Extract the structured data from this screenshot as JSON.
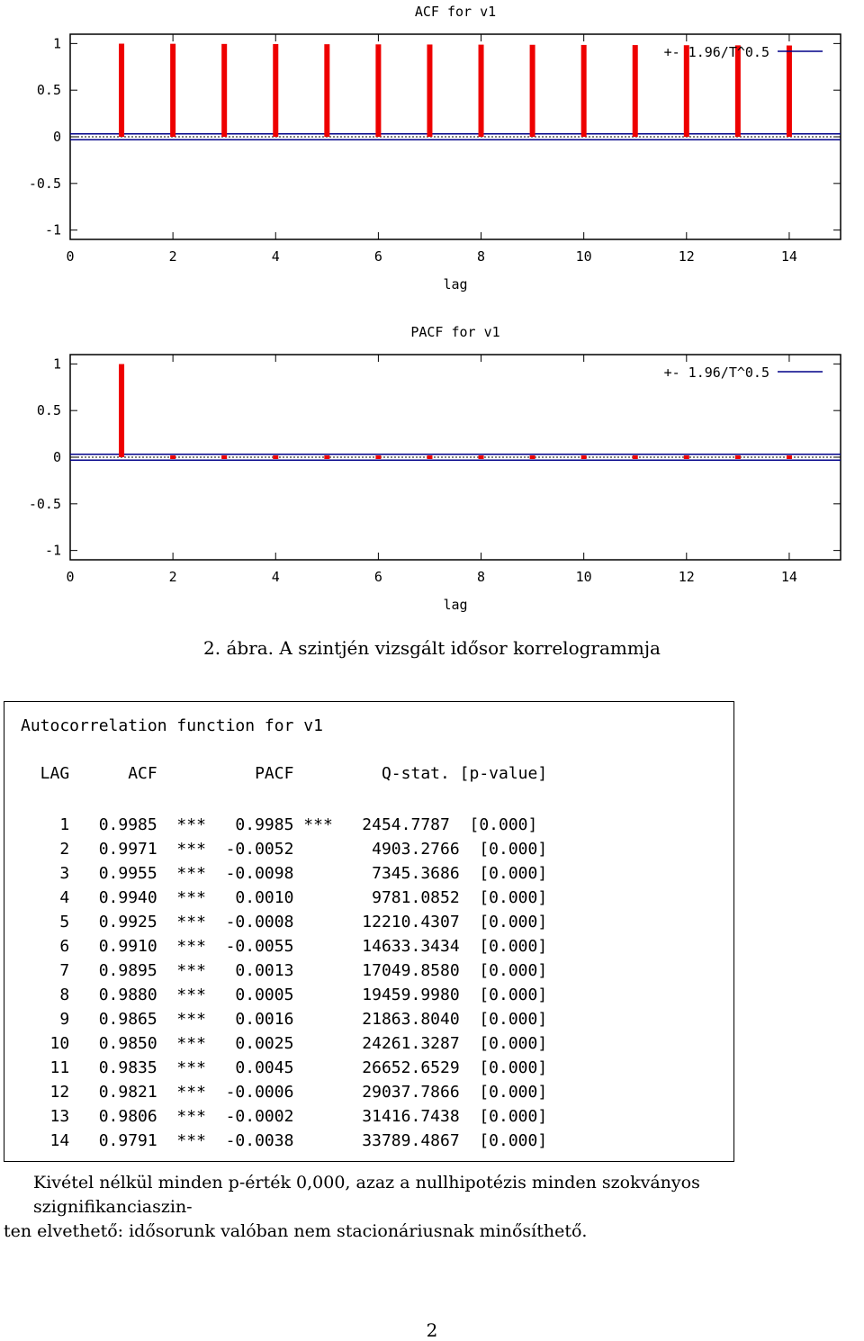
{
  "chart_data": [
    {
      "type": "bar",
      "title": "ACF for v1",
      "xlabel": "lag",
      "ylabel": "",
      "xlim": [
        0,
        15
      ],
      "ylim": [
        -1.1,
        1.1
      ],
      "xticks": [
        "0",
        "2",
        "4",
        "6",
        "8",
        "10",
        "12",
        "14"
      ],
      "yticks": [
        "1",
        "0.5",
        "0",
        "-0.5",
        "-1"
      ],
      "legend": "+- 1.96/T^0.5",
      "legend_position": "top-right",
      "bound": 0.0318,
      "x": [
        1,
        2,
        3,
        4,
        5,
        6,
        7,
        8,
        9,
        10,
        11,
        12,
        13,
        14
      ],
      "values": [
        0.9985,
        0.9971,
        0.9955,
        0.994,
        0.9925,
        0.991,
        0.9895,
        0.988,
        0.9865,
        0.985,
        0.9835,
        0.9821,
        0.9806,
        0.9791
      ],
      "bar_color": "#ee0000",
      "bound_color": "#000088"
    },
    {
      "type": "bar",
      "title": "PACF for v1",
      "xlabel": "lag",
      "ylabel": "",
      "xlim": [
        0,
        15
      ],
      "ylim": [
        -1.1,
        1.1
      ],
      "xticks": [
        "0",
        "2",
        "4",
        "6",
        "8",
        "10",
        "12",
        "14"
      ],
      "yticks": [
        "1",
        "0.5",
        "0",
        "-0.5",
        "-1"
      ],
      "legend": "+- 1.96/T^0.5",
      "legend_position": "top-right",
      "bound": 0.0318,
      "x": [
        1,
        2,
        3,
        4,
        5,
        6,
        7,
        8,
        9,
        10,
        11,
        12,
        13,
        14
      ],
      "values": [
        0.9985,
        -0.0052,
        -0.0098,
        0.001,
        -0.0008,
        -0.0055,
        0.0013,
        0.0005,
        0.0016,
        0.0025,
        0.0045,
        -0.0006,
        -0.0002,
        -0.0038
      ],
      "bar_color": "#ee0000",
      "bound_color": "#000088"
    }
  ],
  "caption": "2. ábra. A szintjén vizsgált idősor korrelogrammja",
  "output": {
    "title": "Autocorrelation function for v1",
    "header": "  LAG      ACF          PACF         Q-stat. [p-value]",
    "rows": [
      "    1   0.9985  ***   0.9985 ***   2454.7787  [0.000]",
      "    2   0.9971  ***  -0.0052        4903.2766  [0.000]",
      "    3   0.9955  ***  -0.0098        7345.3686  [0.000]",
      "    4   0.9940  ***   0.0010        9781.0852  [0.000]",
      "    5   0.9925  ***  -0.0008       12210.4307  [0.000]",
      "    6   0.9910  ***  -0.0055       14633.3434  [0.000]",
      "    7   0.9895  ***   0.0013       17049.8580  [0.000]",
      "    8   0.9880  ***   0.0005       19459.9980  [0.000]",
      "    9   0.9865  ***   0.0016       21863.8040  [0.000]",
      "   10   0.9850  ***   0.0025       24261.3287  [0.000]",
      "   11   0.9835  ***   0.0045       26652.6529  [0.000]",
      "   12   0.9821  ***  -0.0006       29037.7866  [0.000]",
      "   13   0.9806  ***  -0.0002       31416.7438  [0.000]",
      "   14   0.9791  ***  -0.0038       33789.4867  [0.000]"
    ]
  },
  "paragraph": {
    "line1": "Kivétel nélkül minden p-érték 0,000, azaz a nullhipotézis minden szokványos szignifikanciaszin-",
    "line2": "ten elvethető: idősorunk valóban nem stacionáriusnak minősíthető."
  },
  "page_number": "2"
}
